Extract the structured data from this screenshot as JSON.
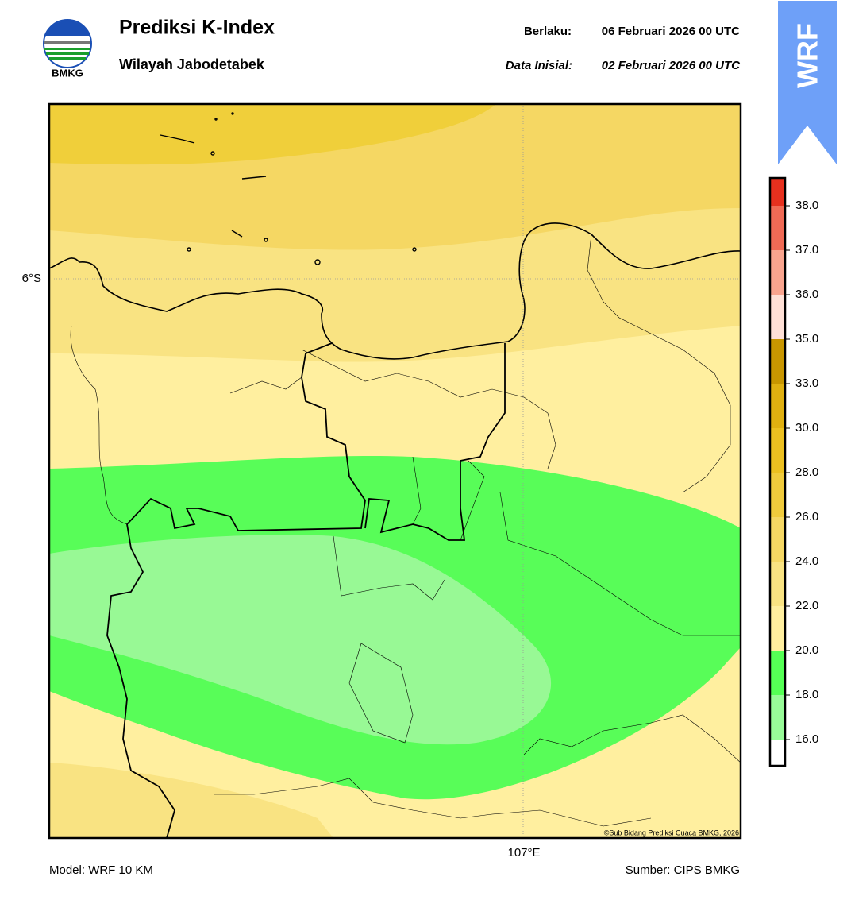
{
  "header": {
    "logo_text": "BMKG",
    "title": "Prediksi K-Index",
    "subtitle": "Wilayah Jabodetabek",
    "valid_label": "Berlaku:",
    "valid_time": "06 Februari 2026 00 UTC",
    "init_label": "Data Inisial:",
    "init_time": "02 Februari 2026 00 UTC"
  },
  "badge": "WRF",
  "map": {
    "lat_label": "6°S",
    "lon_label": "107°E",
    "copyright": "©Sub Bidang Prediksi Cuaca BMKG, 2026"
  },
  "colorbar": {
    "ticks": [
      {
        "value": 16,
        "label": "16.0"
      },
      {
        "value": 18,
        "label": "18.0"
      },
      {
        "value": 20,
        "label": "20.0"
      },
      {
        "value": 22,
        "label": "22.0"
      },
      {
        "value": 24,
        "label": "24.0"
      },
      {
        "value": 26,
        "label": "26.0"
      },
      {
        "value": 28,
        "label": "28.0"
      },
      {
        "value": 30,
        "label": "30.0"
      },
      {
        "value": 33,
        "label": "33.0"
      },
      {
        "value": 35,
        "label": "35.0"
      },
      {
        "value": 36,
        "label": "36.0"
      },
      {
        "value": 37,
        "label": "37.0"
      },
      {
        "value": 38,
        "label": "38.0"
      }
    ],
    "colors": [
      "#ffffff",
      "#98fb98",
      "#55ff55",
      "#ffef9f",
      "#f9e382",
      "#f5d763",
      "#f0cb3c",
      "#ecc020",
      "#e0b010",
      "#c89600",
      "#ffe0d6",
      "#f9a48e",
      "#f06a55",
      "#e6301e"
    ]
  },
  "footer": {
    "model": "Model: WRF 10 KM",
    "source": "Sumber: CIPS BMKG"
  }
}
